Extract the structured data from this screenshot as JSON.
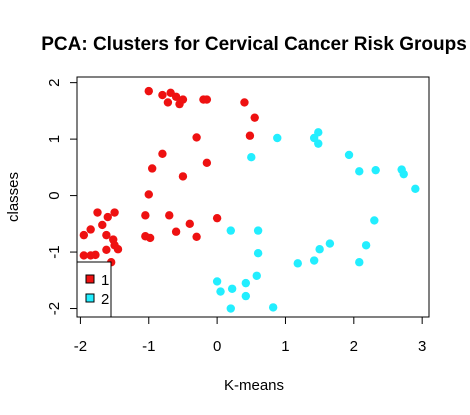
{
  "chart_data": {
    "type": "scatter",
    "title": "PCA: Clusters for Cervical Cancer Risk Groups",
    "xlabel": "K-means",
    "ylabel": "classes",
    "xlim": [
      -2.05,
      3.1
    ],
    "ylim": [
      -2.15,
      2.1
    ],
    "x_ticks": [
      -2,
      -1,
      0,
      1,
      2,
      3
    ],
    "y_ticks": [
      -2,
      -1,
      0,
      1,
      2
    ],
    "x_tick_labels": [
      "-2",
      "-1",
      "0",
      "1",
      "2",
      "3"
    ],
    "y_tick_labels": [
      "-2",
      "-1",
      "0",
      "1",
      "2"
    ],
    "grid": false,
    "legend_position": "bottom-left",
    "series": [
      {
        "name": "1",
        "color": "#ee1111",
        "points": [
          [
            -1.0,
            1.85
          ],
          [
            -0.8,
            1.78
          ],
          [
            -0.68,
            1.82
          ],
          [
            -0.6,
            1.75
          ],
          [
            -0.72,
            1.65
          ],
          [
            -0.55,
            1.62
          ],
          [
            -0.5,
            1.7
          ],
          [
            -0.2,
            1.7
          ],
          [
            -0.15,
            1.7
          ],
          [
            0.4,
            1.65
          ],
          [
            0.55,
            1.38
          ],
          [
            0.48,
            1.06
          ],
          [
            -0.3,
            1.03
          ],
          [
            -0.8,
            0.74
          ],
          [
            -0.95,
            0.48
          ],
          [
            -0.15,
            0.58
          ],
          [
            -0.5,
            0.34
          ],
          [
            -1.0,
            0.02
          ],
          [
            -1.5,
            -0.3
          ],
          [
            -1.6,
            -0.38
          ],
          [
            -1.75,
            -0.3
          ],
          [
            -1.95,
            -0.7
          ],
          [
            -1.85,
            -0.6
          ],
          [
            -1.68,
            -0.52
          ],
          [
            -1.62,
            -0.7
          ],
          [
            -1.52,
            -0.78
          ],
          [
            -1.5,
            -0.88
          ],
          [
            -1.45,
            -0.95
          ],
          [
            -1.62,
            -0.96
          ],
          [
            -1.78,
            -1.05
          ],
          [
            -1.85,
            -1.06
          ],
          [
            -1.95,
            -1.06
          ],
          [
            -1.55,
            -1.18
          ],
          [
            -1.05,
            -0.35
          ],
          [
            -1.05,
            -0.72
          ],
          [
            -0.98,
            -0.75
          ],
          [
            -0.7,
            -0.35
          ],
          [
            -0.6,
            -0.64
          ],
          [
            -0.4,
            -0.5
          ],
          [
            -0.3,
            -0.73
          ],
          [
            0.0,
            -0.4
          ]
        ]
      },
      {
        "name": "2",
        "color": "#22eeff",
        "points": [
          [
            0.88,
            1.02
          ],
          [
            1.42,
            1.02
          ],
          [
            1.48,
            1.12
          ],
          [
            1.48,
            0.92
          ],
          [
            0.5,
            0.68
          ],
          [
            1.93,
            0.72
          ],
          [
            2.08,
            0.43
          ],
          [
            2.32,
            0.45
          ],
          [
            2.7,
            0.46
          ],
          [
            2.73,
            0.38
          ],
          [
            2.9,
            0.12
          ],
          [
            2.3,
            -0.44
          ],
          [
            2.18,
            -0.88
          ],
          [
            2.08,
            -1.18
          ],
          [
            1.65,
            -0.85
          ],
          [
            1.5,
            -0.95
          ],
          [
            1.42,
            -1.15
          ],
          [
            1.18,
            -1.2
          ],
          [
            0.6,
            -0.62
          ],
          [
            0.6,
            -1.02
          ],
          [
            0.58,
            -1.42
          ],
          [
            0.42,
            -1.55
          ],
          [
            0.2,
            -0.62
          ],
          [
            0.0,
            -1.52
          ],
          [
            0.05,
            -1.7
          ],
          [
            0.22,
            -1.65
          ],
          [
            0.42,
            -1.78
          ],
          [
            0.2,
            -2.0
          ],
          [
            0.82,
            -1.98
          ]
        ]
      }
    ]
  }
}
